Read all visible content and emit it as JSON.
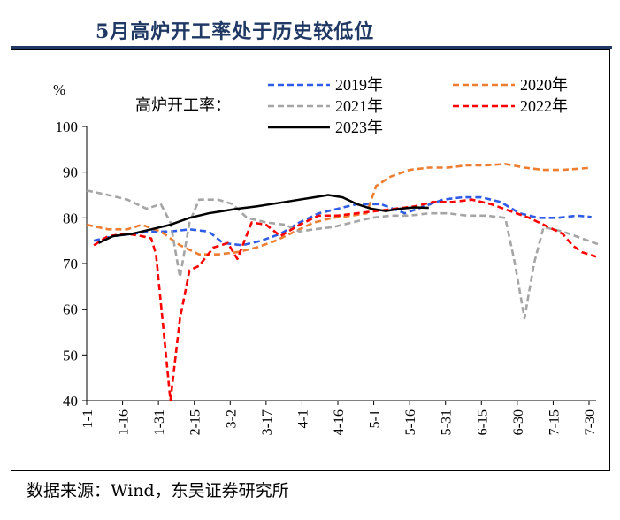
{
  "title": "5月高炉开工率处于历史较低位",
  "source": "数据来源：Wind，东吴证券研究所",
  "chart_data": {
    "type": "line",
    "ylabel": "%",
    "ylim": [
      40,
      100
    ],
    "yticks": [
      40,
      50,
      60,
      70,
      80,
      90,
      100
    ],
    "grid": false,
    "legend_title": "高炉开工率：",
    "legend_placement": "top",
    "x_unit": "day-of-year",
    "x_range": [
      1,
      211
    ],
    "categories": [
      "1-1",
      "1-16",
      "1-31",
      "2-15",
      "3-2",
      "3-17",
      "4-1",
      "4-16",
      "5-1",
      "5-16",
      "5-31",
      "6-15",
      "6-30",
      "7-15",
      "7-30"
    ],
    "series": [
      {
        "name": "2019年",
        "color": "#2e5ce6",
        "dash": "dashed",
        "points": [
          [
            4,
            75
          ],
          [
            12,
            76
          ],
          [
            20,
            76.5
          ],
          [
            28,
            77
          ],
          [
            36,
            77
          ],
          [
            44,
            77.5
          ],
          [
            52,
            77
          ],
          [
            58,
            74.5
          ],
          [
            66,
            74
          ],
          [
            74,
            75
          ],
          [
            82,
            76.5
          ],
          [
            90,
            79
          ],
          [
            98,
            81
          ],
          [
            106,
            82
          ],
          [
            114,
            83
          ],
          [
            124,
            83
          ],
          [
            134,
            81
          ],
          [
            142,
            82.5
          ],
          [
            150,
            84
          ],
          [
            158,
            84.5
          ],
          [
            166,
            84.5
          ],
          [
            174,
            83.5
          ],
          [
            182,
            81
          ],
          [
            190,
            80
          ],
          [
            198,
            80
          ],
          [
            206,
            80.5
          ],
          [
            212,
            80.2
          ]
        ]
      },
      {
        "name": "2020年",
        "color": "#ed7d31",
        "dash": "dashed",
        "points": [
          [
            1,
            78.5
          ],
          [
            10,
            77.5
          ],
          [
            18,
            77.5
          ],
          [
            24,
            78.5
          ],
          [
            32,
            77
          ],
          [
            40,
            74
          ],
          [
            48,
            72
          ],
          [
            56,
            72
          ],
          [
            64,
            72.5
          ],
          [
            72,
            73.5
          ],
          [
            80,
            75
          ],
          [
            88,
            77
          ],
          [
            96,
            79
          ],
          [
            104,
            80
          ],
          [
            112,
            80.5
          ],
          [
            118,
            81
          ],
          [
            122,
            87
          ],
          [
            128,
            89
          ],
          [
            136,
            90.5
          ],
          [
            144,
            91
          ],
          [
            152,
            91
          ],
          [
            160,
            91.5
          ],
          [
            168,
            91.5
          ],
          [
            176,
            91.8
          ],
          [
            184,
            91
          ],
          [
            192,
            90.5
          ],
          [
            200,
            90.5
          ],
          [
            208,
            90.8
          ],
          [
            212,
            91
          ]
        ]
      },
      {
        "name": "2021年",
        "color": "#a5a5a5",
        "dash": "dashed",
        "points": [
          [
            1,
            86
          ],
          [
            10,
            85
          ],
          [
            18,
            84
          ],
          [
            26,
            82
          ],
          [
            32,
            83
          ],
          [
            36,
            79
          ],
          [
            40,
            67
          ],
          [
            44,
            79
          ],
          [
            48,
            84
          ],
          [
            56,
            84
          ],
          [
            62,
            83
          ],
          [
            68,
            80
          ],
          [
            76,
            79
          ],
          [
            84,
            78.5
          ],
          [
            90,
            77
          ],
          [
            96,
            77.5
          ],
          [
            104,
            78
          ],
          [
            112,
            79
          ],
          [
            120,
            80
          ],
          [
            128,
            80.5
          ],
          [
            136,
            80.5
          ],
          [
            144,
            81
          ],
          [
            152,
            81
          ],
          [
            160,
            80.5
          ],
          [
            168,
            80.5
          ],
          [
            176,
            80
          ],
          [
            180,
            70
          ],
          [
            184,
            58
          ],
          [
            188,
            70
          ],
          [
            192,
            78
          ],
          [
            200,
            77
          ],
          [
            208,
            75.5
          ],
          [
            216,
            74
          ]
        ]
      },
      {
        "name": "2022年",
        "color": "#ff0000",
        "dash": "dashed",
        "points": [
          [
            4,
            74
          ],
          [
            10,
            76
          ],
          [
            18,
            76.5
          ],
          [
            24,
            76
          ],
          [
            28,
            75.5
          ],
          [
            30,
            72
          ],
          [
            33,
            56
          ],
          [
            36,
            40
          ],
          [
            40,
            58
          ],
          [
            44,
            68.5
          ],
          [
            48,
            69.5
          ],
          [
            54,
            73.5
          ],
          [
            60,
            74.5
          ],
          [
            64,
            71
          ],
          [
            70,
            79
          ],
          [
            76,
            78.5
          ],
          [
            82,
            76
          ],
          [
            90,
            78.5
          ],
          [
            98,
            80.5
          ],
          [
            106,
            80.5
          ],
          [
            114,
            81
          ],
          [
            122,
            81.5
          ],
          [
            130,
            82
          ],
          [
            138,
            82.5
          ],
          [
            146,
            83.5
          ],
          [
            154,
            83.5
          ],
          [
            162,
            84
          ],
          [
            170,
            83
          ],
          [
            178,
            81.5
          ],
          [
            186,
            80
          ],
          [
            192,
            78.5
          ],
          [
            200,
            76.5
          ],
          [
            204,
            74
          ],
          [
            208,
            72.5
          ],
          [
            214,
            71.5
          ]
        ]
      },
      {
        "name": "2023年",
        "color": "#000000",
        "dash": "solid",
        "points": [
          [
            6,
            74.5
          ],
          [
            12,
            76
          ],
          [
            20,
            76.5
          ],
          [
            28,
            77.5
          ],
          [
            36,
            78.5
          ],
          [
            44,
            80
          ],
          [
            52,
            81
          ],
          [
            58,
            81.5
          ],
          [
            64,
            82
          ],
          [
            72,
            82.5
          ],
          [
            78,
            83
          ],
          [
            84,
            83.5
          ],
          [
            90,
            84
          ],
          [
            96,
            84.5
          ],
          [
            102,
            85
          ],
          [
            108,
            84.5
          ],
          [
            114,
            83
          ],
          [
            120,
            82
          ],
          [
            126,
            81.5
          ],
          [
            132,
            82
          ],
          [
            138,
            82.3
          ],
          [
            144,
            82.2
          ]
        ]
      }
    ]
  }
}
